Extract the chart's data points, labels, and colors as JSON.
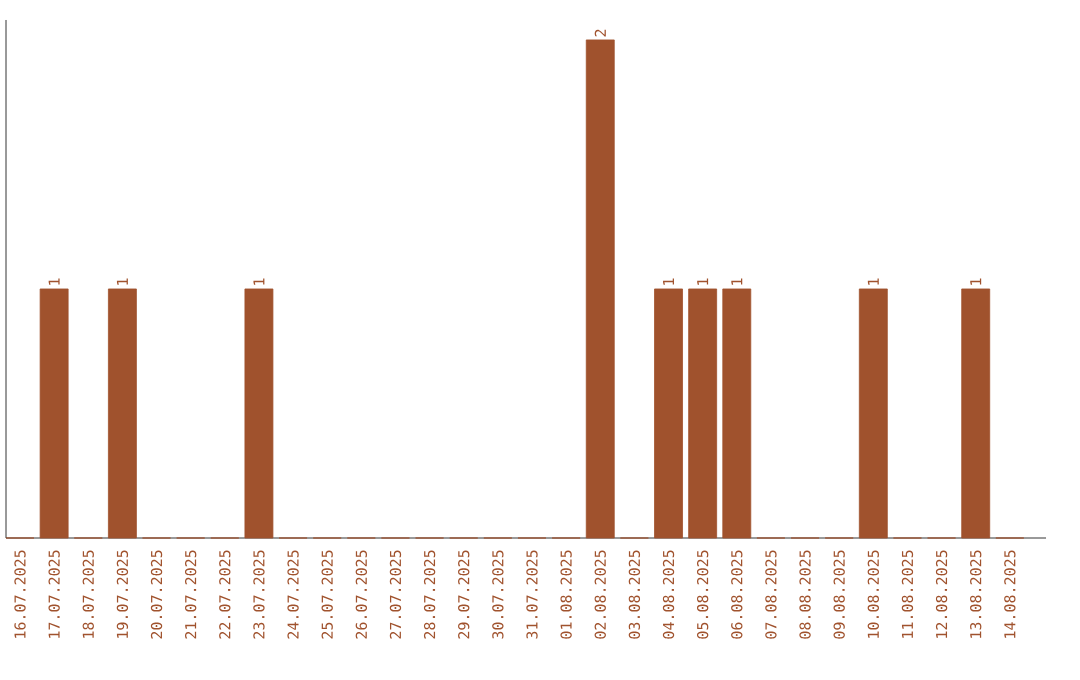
{
  "chart_data": {
    "type": "bar",
    "categories": [
      "16.07.2025",
      "17.07.2025",
      "18.07.2025",
      "19.07.2025",
      "20.07.2025",
      "21.07.2025",
      "22.07.2025",
      "23.07.2025",
      "24.07.2025",
      "25.07.2025",
      "26.07.2025",
      "27.07.2025",
      "28.07.2025",
      "29.07.2025",
      "30.07.2025",
      "31.07.2025",
      "01.08.2025",
      "02.08.2025",
      "03.08.2025",
      "04.08.2025",
      "05.08.2025",
      "06.08.2025",
      "07.08.2025",
      "08.08.2025",
      "09.08.2025",
      "10.08.2025",
      "11.08.2025",
      "12.08.2025",
      "13.08.2025",
      "14.08.2025"
    ],
    "values": [
      0,
      1,
      0,
      1,
      0,
      0,
      0,
      1,
      0,
      0,
      0,
      0,
      0,
      0,
      0,
      0,
      0,
      2,
      0,
      1,
      1,
      1,
      0,
      0,
      0,
      1,
      0,
      0,
      1,
      0
    ],
    "value_labels": [
      null,
      "1",
      null,
      "1",
      null,
      null,
      null,
      "1",
      null,
      null,
      null,
      null,
      null,
      null,
      null,
      null,
      null,
      "2",
      null,
      "1",
      "1",
      "1",
      null,
      null,
      null,
      "1",
      null,
      null,
      "1",
      null
    ],
    "color": "#a0522d",
    "tick_labels": "x"
  }
}
